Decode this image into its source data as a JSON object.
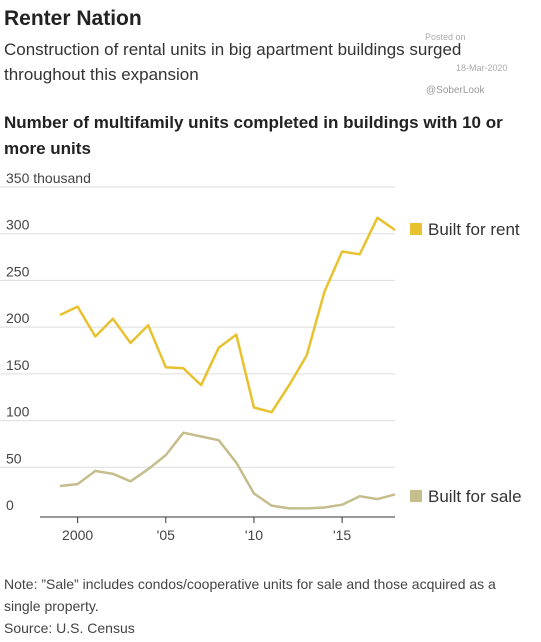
{
  "header": {
    "title": "Renter Nation",
    "subtitle": "Construction of rental units in big apartment buildings surged throughout this expansion"
  },
  "watermark": {
    "posted_on": "Posted on",
    "date": "18-Mar-2020",
    "handle": "@SoberLook"
  },
  "chart_data": {
    "type": "line",
    "title": "Number of multifamily units completed in buildings with 10 or more units",
    "ylabel": "350 thousand",
    "ylim": [
      0,
      350
    ],
    "yticks": [
      0,
      50,
      100,
      150,
      200,
      250,
      300,
      350
    ],
    "ytick_labels": [
      "0",
      "50",
      "100",
      "150",
      "200",
      "250",
      "300",
      "350 thousand"
    ],
    "xticks": [
      2000,
      2005,
      2010,
      2015
    ],
    "xtick_labels": [
      "2000",
      "'05",
      "'10",
      "'15"
    ],
    "xlim": [
      1999,
      2018
    ],
    "grid": true,
    "x": [
      1999,
      2000,
      2001,
      2002,
      2003,
      2004,
      2005,
      2006,
      2007,
      2008,
      2009,
      2010,
      2011,
      2012,
      2013,
      2014,
      2015,
      2016,
      2017,
      2018
    ],
    "series": [
      {
        "name": "Built for rent",
        "color": "#e8c12f",
        "values": [
          213,
          222,
          190,
          209,
          183,
          202,
          157,
          156,
          138,
          178,
          192,
          114,
          109,
          138,
          170,
          238,
          281,
          278,
          317,
          304
        ]
      },
      {
        "name": "Built for sale",
        "color": "#c4bd8c",
        "values": [
          30,
          32,
          46,
          43,
          35,
          48,
          63,
          87,
          83,
          79,
          55,
          22,
          9,
          6,
          6,
          7,
          10,
          19,
          16,
          21
        ]
      }
    ],
    "legend_placement": "right"
  },
  "notes": {
    "note": "Note: ”Sale” includes condos/cooperative units for sale and those acquired as a single property.",
    "source": "Source: U.S. Census"
  }
}
